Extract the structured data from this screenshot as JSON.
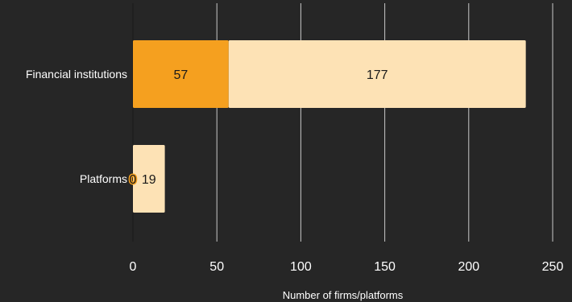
{
  "chart_data": {
    "type": "bar",
    "orientation": "horizontal",
    "stacked": true,
    "categories": [
      "Financial institutions",
      "Platforms"
    ],
    "series": [
      {
        "values": [
          57,
          0
        ],
        "color": "#F5A01F"
      },
      {
        "values": [
          177,
          19
        ],
        "color": "#FDE2B5"
      }
    ],
    "xlabel": "Number of firms/platforms",
    "ylabel": "",
    "xlim": [
      0,
      250
    ],
    "xticks": [
      0,
      50,
      100,
      150,
      200,
      250
    ],
    "grid": "vertical",
    "legend": "none",
    "colors": {
      "background": "#262626",
      "grid": "#ffffff",
      "text": "#ffffff",
      "label_dark": "#1a1a1a"
    }
  }
}
